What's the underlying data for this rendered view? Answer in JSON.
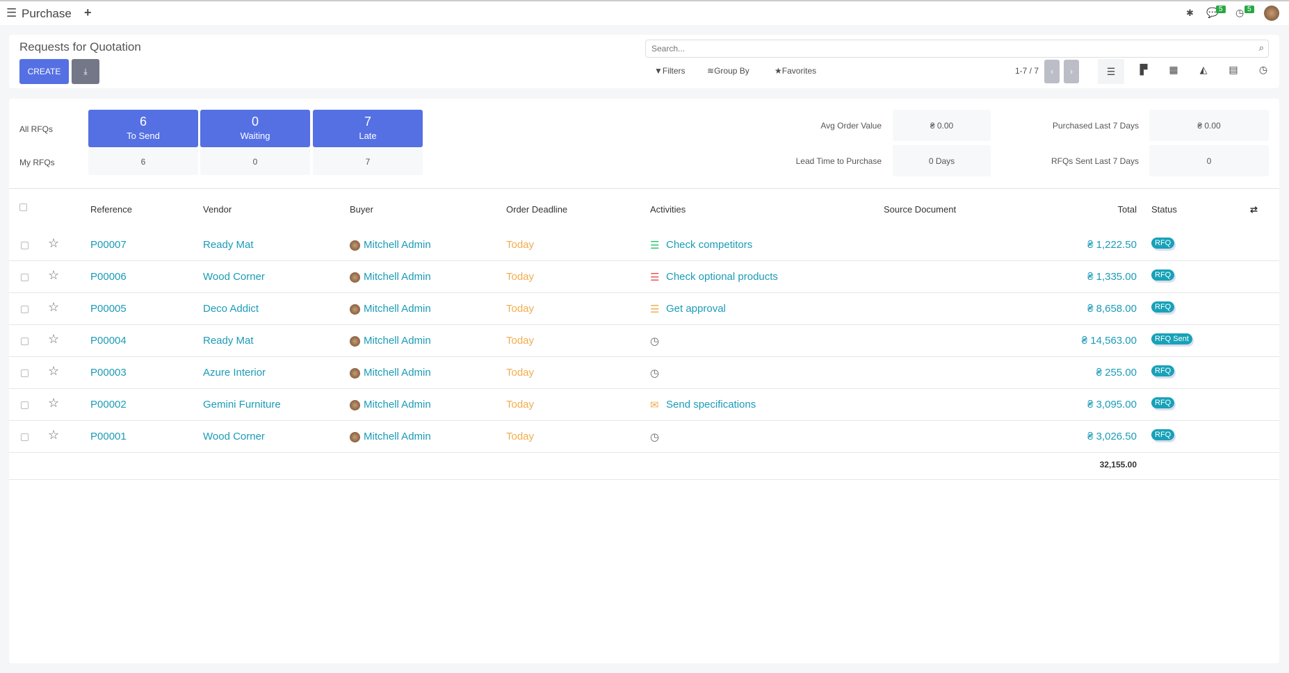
{
  "topbar": {
    "app": "Purchase",
    "badge_messages": "5",
    "badge_activities": "5"
  },
  "control": {
    "title": "Requests for Quotation",
    "create": "CREATE",
    "search_placeholder": "Search...",
    "filters": "Filters",
    "group_by": "Group By",
    "favorites": "Favorites",
    "pager": "1-7 / 7"
  },
  "dashboard": {
    "all_label": "All RFQs",
    "my_label": "My RFQs",
    "tiles": [
      {
        "count": "6",
        "label": "To Send",
        "mine": "6"
      },
      {
        "count": "0",
        "label": "Waiting",
        "mine": "0"
      },
      {
        "count": "7",
        "label": "Late",
        "mine": "7"
      }
    ],
    "stats": {
      "avg_label": "Avg Order Value",
      "avg": "₴ 0.00",
      "lead_label": "Lead Time to Purchase",
      "lead": "0 Days",
      "purch_label": "Purchased Last 7 Days",
      "purch": "₴ 0.00",
      "sent_label": "RFQs Sent Last 7 Days",
      "sent": "0"
    }
  },
  "table": {
    "headers": {
      "reference": "Reference",
      "vendor": "Vendor",
      "buyer": "Buyer",
      "deadline": "Order Deadline",
      "activities": "Activities",
      "source": "Source Document",
      "total": "Total",
      "status": "Status"
    },
    "rows": [
      {
        "ref": "P00007",
        "vendor": "Ready Mat",
        "buyer": "Mitchell Admin",
        "deadline": "Today",
        "activity": "Check competitors",
        "activity_color": "#28c76f",
        "activity_icon": "list-icon",
        "total": "₴ 1,222.50",
        "status": "RFQ"
      },
      {
        "ref": "P00006",
        "vendor": "Wood Corner",
        "buyer": "Mitchell Admin",
        "deadline": "Today",
        "activity": "Check optional products",
        "activity_color": "#ea5455",
        "activity_icon": "list-icon",
        "total": "₴ 1,335.00",
        "status": "RFQ"
      },
      {
        "ref": "P00005",
        "vendor": "Deco Addict",
        "buyer": "Mitchell Admin",
        "deadline": "Today",
        "activity": "Get approval",
        "activity_color": "#f0ad4e",
        "activity_icon": "list-icon",
        "total": "₴ 8,658.00",
        "status": "RFQ"
      },
      {
        "ref": "P00004",
        "vendor": "Ready Mat",
        "buyer": "Mitchell Admin",
        "deadline": "Today",
        "activity": "",
        "activity_icon": "clock-icon",
        "total": "₴ 14,563.00",
        "status": "RFQ Sent"
      },
      {
        "ref": "P00003",
        "vendor": "Azure Interior",
        "buyer": "Mitchell Admin",
        "deadline": "Today",
        "activity": "",
        "activity_icon": "clock-icon",
        "total": "₴ 255.00",
        "status": "RFQ"
      },
      {
        "ref": "P00002",
        "vendor": "Gemini Furniture",
        "buyer": "Mitchell Admin",
        "deadline": "Today",
        "activity": "Send specifications",
        "activity_color": "#f0ad4e",
        "activity_icon": "envelope-icon",
        "total": "₴ 3,095.00",
        "status": "RFQ"
      },
      {
        "ref": "P00001",
        "vendor": "Wood Corner",
        "buyer": "Mitchell Admin",
        "deadline": "Today",
        "activity": "",
        "activity_icon": "clock-icon",
        "total": "₴ 3,026.50",
        "status": "RFQ"
      }
    ],
    "sum_total": "32,155.00"
  },
  "colors": {
    "primary": "#5570e3",
    "link": "#1a9bb8",
    "deadline": "#f0ad4e",
    "badge": "#17a2b8"
  }
}
